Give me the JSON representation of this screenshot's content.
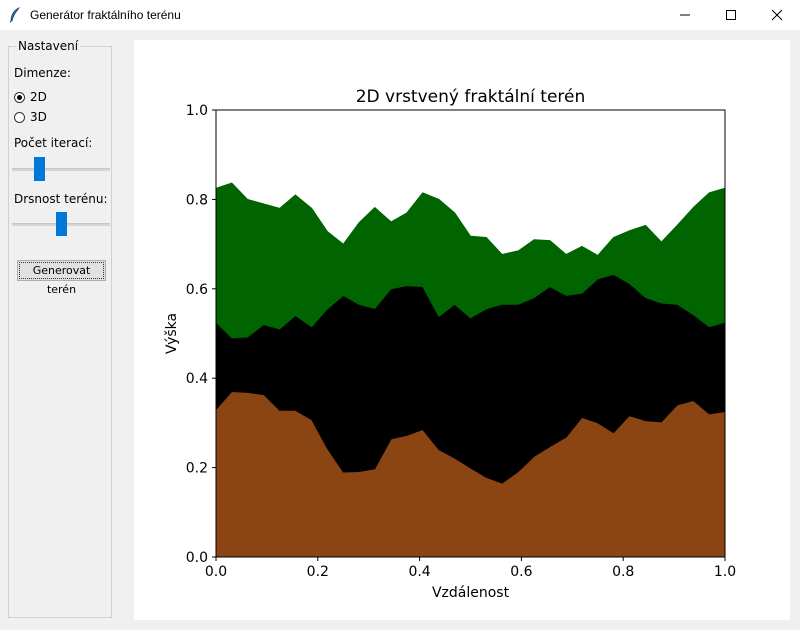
{
  "window": {
    "title": "Generátor fraktálního terénu"
  },
  "settings": {
    "group_label": "Nastavení",
    "dimension_label": "Dimenze:",
    "options": [
      {
        "label": "2D",
        "selected": true
      },
      {
        "label": "3D",
        "selected": false
      }
    ],
    "iterations_label": "Počet iterací:",
    "iterations_level": 0.25,
    "roughness_label": "Drsnost terénu:",
    "roughness_level": 0.5,
    "generate_label": "Generovat terén"
  },
  "colors": {
    "slider_thumb": "#0078d7",
    "layer_bottom": "#8b4513",
    "layer_middle": "#000000",
    "layer_top": "#006400"
  },
  "chart_data": {
    "type": "area",
    "title": "2D vrstvený fraktální terén",
    "xlabel": "Vzdálenost",
    "ylabel": "Výška",
    "xlim": [
      0,
      1
    ],
    "ylim": [
      0,
      1
    ],
    "xticks": [
      "0.0",
      "0.2",
      "0.4",
      "0.6",
      "0.8",
      "1.0"
    ],
    "yticks": [
      "0.0",
      "0.2",
      "0.4",
      "0.6",
      "0.8",
      "1.0"
    ],
    "grid": false,
    "x": [
      0.0,
      0.031,
      0.062,
      0.094,
      0.125,
      0.156,
      0.188,
      0.219,
      0.25,
      0.281,
      0.312,
      0.344,
      0.375,
      0.406,
      0.438,
      0.469,
      0.5,
      0.531,
      0.562,
      0.594,
      0.625,
      0.656,
      0.688,
      0.719,
      0.75,
      0.781,
      0.812,
      0.844,
      0.875,
      0.906,
      0.938,
      0.969,
      1.0
    ],
    "series": [
      {
        "color": "#8b4513",
        "values": [
          0.33,
          0.37,
          0.368,
          0.363,
          0.328,
          0.328,
          0.307,
          0.242,
          0.19,
          0.191,
          0.197,
          0.264,
          0.272,
          0.285,
          0.24,
          0.221,
          0.199,
          0.178,
          0.165,
          0.191,
          0.225,
          0.247,
          0.268,
          0.312,
          0.3,
          0.278,
          0.316,
          0.305,
          0.302,
          0.34,
          0.35,
          0.32,
          0.325
        ]
      },
      {
        "color": "#000000",
        "values": [
          0.525,
          0.49,
          0.492,
          0.52,
          0.51,
          0.54,
          0.515,
          0.555,
          0.585,
          0.565,
          0.556,
          0.6,
          0.607,
          0.605,
          0.538,
          0.565,
          0.535,
          0.555,
          0.565,
          0.565,
          0.58,
          0.605,
          0.585,
          0.59,
          0.622,
          0.632,
          0.612,
          0.58,
          0.568,
          0.565,
          0.542,
          0.515,
          0.525
        ]
      },
      {
        "color": "#006400",
        "values": [
          0.825,
          0.837,
          0.8,
          0.79,
          0.78,
          0.81,
          0.78,
          0.728,
          0.7,
          0.748,
          0.782,
          0.75,
          0.77,
          0.815,
          0.8,
          0.77,
          0.718,
          0.715,
          0.677,
          0.685,
          0.71,
          0.708,
          0.677,
          0.695,
          0.675,
          0.715,
          0.73,
          0.742,
          0.705,
          0.742,
          0.782,
          0.815,
          0.825
        ]
      }
    ]
  }
}
